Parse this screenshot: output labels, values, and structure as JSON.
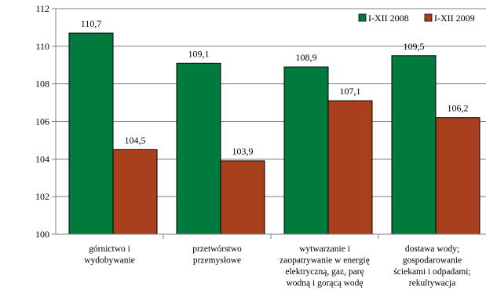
{
  "chart_data": {
    "type": "bar",
    "title": "",
    "xlabel": "",
    "ylabel": "",
    "ylim": [
      100,
      112
    ],
    "yticks": [
      100,
      102,
      104,
      106,
      108,
      110,
      112
    ],
    "grid": true,
    "legend_position": "top-right",
    "categories": [
      [
        "górnictwo i",
        "wydobywanie"
      ],
      [
        "przetwórstwo",
        "przemysłowe"
      ],
      [
        "wytwarzanie i",
        "zaopatrywanie w energię",
        "elektryczną, gaz, parę",
        "wodną i gorącą wodę"
      ],
      [
        "dostawa wody;",
        "gospodarowanie",
        "ściekami i odpadami;",
        "rekultywacja"
      ]
    ],
    "series": [
      {
        "name": "I-XII 2008",
        "color": "#007a3d",
        "values": [
          110.7,
          109.1,
          108.9,
          109.5
        ],
        "labels": [
          "110,7",
          "109,1",
          "108,9",
          "109,5"
        ]
      },
      {
        "name": "I-XII 2009",
        "color": "#a9401d",
        "values": [
          104.5,
          103.9,
          107.1,
          106.2
        ],
        "labels": [
          "104,5",
          "103,9",
          "107,1",
          "106,2"
        ]
      }
    ]
  }
}
